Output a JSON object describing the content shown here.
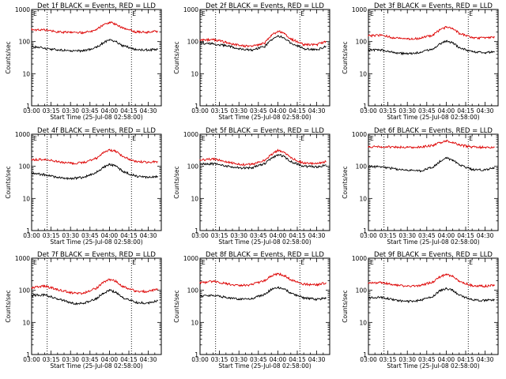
{
  "figure": {
    "x_axis_label": "Start Time (25-Jul-08 02:58:00)",
    "y_axis_label": "Counts/sec",
    "corner_marker": "E"
  },
  "colors": {
    "events": "#000000",
    "lld": "#dd0000",
    "background": "#ffffff"
  },
  "chart_data": [
    {
      "type": "line",
      "title": "Det 1f BLACK = Events, RED = LLD",
      "xlabel": "Start Time (25-Jul-08 02:58:00)",
      "ylabel": "Counts/sec",
      "yscale": "log",
      "xlim_minutes": [
        0,
        100
      ],
      "ylim": [
        1,
        1000
      ],
      "x_tick_minutes": [
        0,
        15,
        30,
        45,
        60,
        75,
        90
      ],
      "x_tick_labels": [
        "03:00",
        "03:15",
        "03:30",
        "03:45",
        "04:00",
        "04:15",
        "04:30"
      ],
      "y_tick_values": [
        1,
        10,
        100,
        1000
      ],
      "y_tick_labels": [
        "1",
        "10",
        "100",
        "1000"
      ],
      "dotted_vlines_minutes": [
        12,
        77
      ],
      "x": [
        0,
        10,
        20,
        30,
        40,
        50,
        55,
        60,
        65,
        70,
        80,
        90,
        97
      ],
      "series": [
        {
          "name": "Events",
          "color": "black",
          "values": [
            70,
            62,
            55,
            52,
            52,
            65,
            90,
            110,
            100,
            75,
            57,
            55,
            58
          ]
        },
        {
          "name": "LLD",
          "color": "red",
          "values": [
            240,
            230,
            200,
            190,
            190,
            230,
            330,
            400,
            350,
            260,
            200,
            195,
            210
          ]
        }
      ]
    },
    {
      "type": "line",
      "title": "Det 2f BLACK = Events, RED = LLD",
      "xlabel": "Start Time (25-Jul-08 02:58:00)",
      "ylabel": "Counts/sec",
      "yscale": "log",
      "xlim_minutes": [
        0,
        100
      ],
      "ylim": [
        1,
        1000
      ],
      "x_tick_minutes": [
        0,
        15,
        30,
        45,
        60,
        75,
        90
      ],
      "x_tick_labels": [
        "03:00",
        "03:15",
        "03:30",
        "03:45",
        "04:00",
        "04:15",
        "04:30"
      ],
      "y_tick_values": [
        1,
        10,
        100,
        1000
      ],
      "y_tick_labels": [
        "1",
        "10",
        "100",
        "1000"
      ],
      "dotted_vlines_minutes": [
        12,
        77
      ],
      "x": [
        0,
        10,
        20,
        30,
        40,
        50,
        55,
        60,
        65,
        70,
        80,
        90,
        97
      ],
      "series": [
        {
          "name": "Events",
          "color": "black",
          "values": [
            90,
            85,
            75,
            60,
            55,
            70,
            110,
            150,
            130,
            90,
            60,
            55,
            70
          ]
        },
        {
          "name": "LLD",
          "color": "red",
          "values": [
            110,
            115,
            95,
            75,
            70,
            90,
            150,
            210,
            180,
            120,
            80,
            80,
            100
          ]
        }
      ]
    },
    {
      "type": "line",
      "title": "Det 3f BLACK = Events, RED = LLD",
      "xlabel": "Start Time (25-Jul-08 02:58:00)",
      "ylabel": "Counts/sec",
      "yscale": "log",
      "xlim_minutes": [
        0,
        100
      ],
      "ylim": [
        1,
        1000
      ],
      "x_tick_minutes": [
        0,
        15,
        30,
        45,
        60,
        75,
        90
      ],
      "x_tick_labels": [
        "03:00",
        "03:15",
        "03:30",
        "03:45",
        "04:00",
        "04:15",
        "04:30"
      ],
      "y_tick_values": [
        1,
        10,
        100,
        1000
      ],
      "y_tick_labels": [
        "1",
        "10",
        "100",
        "1000"
      ],
      "dotted_vlines_minutes": [
        12,
        77
      ],
      "x": [
        0,
        10,
        20,
        30,
        40,
        50,
        55,
        60,
        65,
        70,
        80,
        90,
        97
      ],
      "series": [
        {
          "name": "Events",
          "color": "black",
          "values": [
            55,
            55,
            45,
            42,
            45,
            60,
            85,
            105,
            90,
            65,
            48,
            45,
            48
          ]
        },
        {
          "name": "LLD",
          "color": "red",
          "values": [
            150,
            160,
            130,
            120,
            125,
            160,
            230,
            280,
            250,
            180,
            130,
            130,
            140
          ]
        }
      ]
    },
    {
      "type": "line",
      "title": "Det 4f BLACK = Events, RED = LLD",
      "xlabel": "Start Time (25-Jul-08 02:58:00)",
      "ylabel": "Counts/sec",
      "yscale": "log",
      "xlim_minutes": [
        0,
        100
      ],
      "ylim": [
        1,
        1000
      ],
      "x_tick_minutes": [
        0,
        15,
        30,
        45,
        60,
        75,
        90
      ],
      "x_tick_labels": [
        "03:00",
        "03:15",
        "03:30",
        "03:45",
        "04:00",
        "04:15",
        "04:30"
      ],
      "y_tick_values": [
        1,
        10,
        100,
        1000
      ],
      "y_tick_labels": [
        "1",
        "10",
        "100",
        "1000"
      ],
      "dotted_vlines_minutes": [
        12,
        77
      ],
      "x": [
        0,
        10,
        20,
        30,
        40,
        50,
        55,
        60,
        65,
        70,
        80,
        90,
        97
      ],
      "series": [
        {
          "name": "Events",
          "color": "black",
          "values": [
            60,
            55,
            45,
            42,
            45,
            65,
            90,
            115,
            100,
            70,
            50,
            45,
            48
          ]
        },
        {
          "name": "LLD",
          "color": "red",
          "values": [
            160,
            165,
            140,
            125,
            130,
            180,
            260,
            330,
            290,
            200,
            140,
            135,
            140
          ]
        }
      ]
    },
    {
      "type": "line",
      "title": "Det 5f BLACK = Events, RED = LLD",
      "xlabel": "Start Time (25-Jul-08 02:58:00)",
      "ylabel": "Counts/sec",
      "yscale": "log",
      "xlim_minutes": [
        0,
        100
      ],
      "ylim": [
        1,
        1000
      ],
      "x_tick_minutes": [
        0,
        15,
        30,
        45,
        60,
        75,
        90
      ],
      "x_tick_labels": [
        "03:00",
        "03:15",
        "03:30",
        "03:45",
        "04:00",
        "04:15",
        "04:30"
      ],
      "y_tick_values": [
        1,
        10,
        100,
        1000
      ],
      "y_tick_labels": [
        "1",
        "10",
        "100",
        "1000"
      ],
      "dotted_vlines_minutes": [
        12,
        77
      ],
      "x": [
        0,
        10,
        20,
        30,
        40,
        50,
        55,
        60,
        65,
        70,
        80,
        90,
        97
      ],
      "series": [
        {
          "name": "Events",
          "color": "black",
          "values": [
            120,
            120,
            105,
            90,
            90,
            120,
            180,
            230,
            200,
            140,
            100,
            95,
            110
          ]
        },
        {
          "name": "LLD",
          "color": "red",
          "values": [
            160,
            170,
            140,
            115,
            115,
            150,
            230,
            310,
            270,
            180,
            125,
            120,
            140
          ]
        }
      ]
    },
    {
      "type": "line",
      "title": "Det 6f BLACK = Events, RED = LLD",
      "xlabel": "Start Time (25-Jul-08 02:58:00)",
      "ylabel": "Counts/sec",
      "yscale": "log",
      "xlim_minutes": [
        0,
        100
      ],
      "ylim": [
        1,
        1000
      ],
      "x_tick_minutes": [
        0,
        15,
        30,
        45,
        60,
        75,
        90
      ],
      "x_tick_labels": [
        "03:00",
        "03:15",
        "03:30",
        "03:45",
        "04:00",
        "04:15",
        "04:30"
      ],
      "y_tick_values": [
        1,
        10,
        100,
        1000
      ],
      "y_tick_labels": [
        "1",
        "10",
        "100",
        "1000"
      ],
      "dotted_vlines_minutes": [
        12,
        77
      ],
      "x": [
        0,
        10,
        20,
        30,
        40,
        50,
        55,
        60,
        65,
        70,
        80,
        90,
        97
      ],
      "series": [
        {
          "name": "Events",
          "color": "black",
          "values": [
            100,
            95,
            85,
            75,
            72,
            95,
            140,
            180,
            160,
            110,
            80,
            78,
            90
          ]
        },
        {
          "name": "LLD",
          "color": "red",
          "values": [
            400,
            410,
            400,
            390,
            400,
            450,
            540,
            620,
            570,
            460,
            400,
            390,
            400
          ]
        }
      ]
    },
    {
      "type": "line",
      "title": "Det 7f BLACK = Events, RED = LLD",
      "xlabel": "Start Time (25-Jul-08 02:58:00)",
      "ylabel": "Counts/sec",
      "yscale": "log",
      "xlim_minutes": [
        0,
        100
      ],
      "ylim": [
        1,
        1000
      ],
      "x_tick_minutes": [
        0,
        15,
        30,
        45,
        60,
        75,
        90
      ],
      "x_tick_labels": [
        "03:00",
        "03:15",
        "03:30",
        "03:45",
        "04:00",
        "04:15",
        "04:30"
      ],
      "y_tick_values": [
        1,
        10,
        100,
        1000
      ],
      "y_tick_labels": [
        "1",
        "10",
        "100",
        "1000"
      ],
      "dotted_vlines_minutes": [
        12,
        77
      ],
      "x": [
        0,
        10,
        20,
        30,
        40,
        50,
        55,
        60,
        65,
        70,
        80,
        90,
        97
      ],
      "series": [
        {
          "name": "Events",
          "color": "black",
          "values": [
            70,
            72,
            55,
            40,
            38,
            55,
            80,
            100,
            85,
            60,
            42,
            40,
            48
          ]
        },
        {
          "name": "LLD",
          "color": "red",
          "values": [
            120,
            135,
            105,
            85,
            80,
            115,
            175,
            220,
            190,
            130,
            95,
            92,
            110
          ]
        }
      ]
    },
    {
      "type": "line",
      "title": "Det 8f BLACK = Events, RED = LLD",
      "xlabel": "Start Time (25-Jul-08 02:58:00)",
      "ylabel": "Counts/sec",
      "yscale": "log",
      "xlim_minutes": [
        0,
        100
      ],
      "ylim": [
        1,
        1000
      ],
      "x_tick_minutes": [
        0,
        15,
        30,
        45,
        60,
        75,
        90
      ],
      "x_tick_labels": [
        "03:00",
        "03:15",
        "03:30",
        "03:45",
        "04:00",
        "04:15",
        "04:30"
      ],
      "y_tick_values": [
        1,
        10,
        100,
        1000
      ],
      "y_tick_labels": [
        "1",
        "10",
        "100",
        "1000"
      ],
      "dotted_vlines_minutes": [
        12,
        77
      ],
      "x": [
        0,
        10,
        20,
        30,
        40,
        50,
        55,
        60,
        65,
        70,
        80,
        90,
        97
      ],
      "series": [
        {
          "name": "Events",
          "color": "black",
          "values": [
            65,
            70,
            60,
            52,
            55,
            75,
            105,
            125,
            110,
            80,
            58,
            52,
            58
          ]
        },
        {
          "name": "LLD",
          "color": "red",
          "values": [
            170,
            190,
            160,
            140,
            150,
            200,
            280,
            330,
            290,
            210,
            155,
            150,
            170
          ]
        }
      ]
    },
    {
      "type": "line",
      "title": "Det 9f BLACK = Events, RED = LLD",
      "xlabel": "Start Time (25-Jul-08 02:58:00)",
      "ylabel": "Counts/sec",
      "yscale": "log",
      "xlim_minutes": [
        0,
        100
      ],
      "ylim": [
        1,
        1000
      ],
      "x_tick_minutes": [
        0,
        15,
        30,
        45,
        60,
        75,
        90
      ],
      "x_tick_labels": [
        "03:00",
        "03:15",
        "03:30",
        "03:45",
        "04:00",
        "04:15",
        "04:30"
      ],
      "y_tick_values": [
        1,
        10,
        100,
        1000
      ],
      "y_tick_labels": [
        "1",
        "10",
        "100",
        "1000"
      ],
      "dotted_vlines_minutes": [
        12,
        77
      ],
      "x": [
        0,
        10,
        20,
        30,
        40,
        50,
        55,
        60,
        65,
        70,
        80,
        90,
        97
      ],
      "series": [
        {
          "name": "Events",
          "color": "black",
          "values": [
            60,
            60,
            50,
            45,
            48,
            65,
            95,
            115,
            100,
            70,
            50,
            48,
            52
          ]
        },
        {
          "name": "LLD",
          "color": "red",
          "values": [
            170,
            175,
            150,
            135,
            140,
            185,
            260,
            310,
            270,
            190,
            140,
            135,
            145
          ]
        }
      ]
    }
  ]
}
